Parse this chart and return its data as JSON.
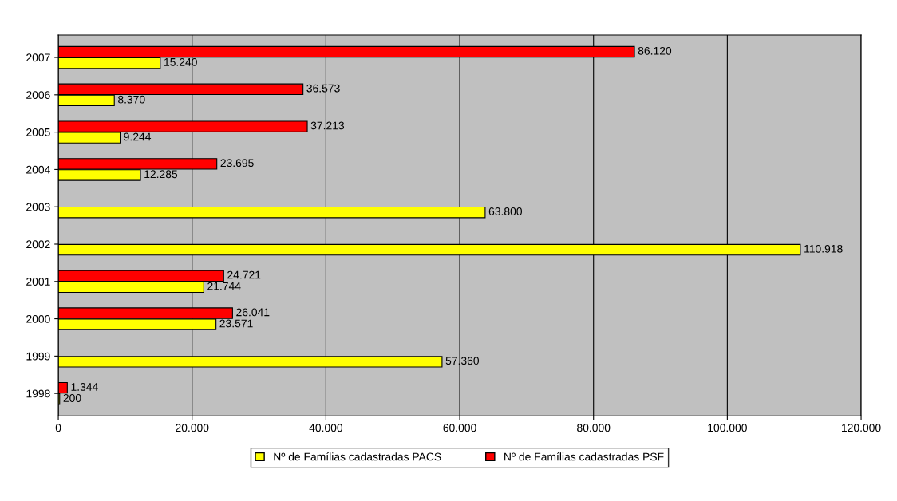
{
  "chart_data": {
    "type": "bar",
    "orientation": "horizontal",
    "categories": [
      "2007",
      "2006",
      "2005",
      "2004",
      "2003",
      "2002",
      "2001",
      "2000",
      "1999",
      "1998"
    ],
    "series": [
      {
        "name": "Nº de Famílias cadastradas PACS",
        "color": "#ffff00",
        "values": [
          15240,
          8370,
          9244,
          12285,
          63800,
          110918,
          21744,
          23571,
          57360,
          200
        ],
        "value_labels": [
          "15.240",
          "8.370",
          "9.244",
          "12.285",
          "63.800",
          "110.918",
          "21.744",
          "23.571",
          "57.360",
          "200"
        ]
      },
      {
        "name": "Nº de Famílias cadastradas PSF",
        "color": "#ff0000",
        "values": [
          86120,
          36573,
          37213,
          23695,
          null,
          null,
          24721,
          26041,
          null,
          1344
        ],
        "value_labels": [
          "86.120",
          "36.573",
          "37.213",
          "23.695",
          null,
          null,
          "24.721",
          "26.041",
          null,
          "1.344"
        ]
      }
    ],
    "xlim": [
      0,
      120000
    ],
    "xticks": [
      {
        "value": 0,
        "label": "0"
      },
      {
        "value": 20000,
        "label": "20.000"
      },
      {
        "value": 40000,
        "label": "40.000"
      },
      {
        "value": 60000,
        "label": "60.000"
      },
      {
        "value": 80000,
        "label": "80.000"
      },
      {
        "value": 100000,
        "label": "100.000"
      },
      {
        "value": 120000,
        "label": "120.000"
      }
    ],
    "grid": "x",
    "legend": "bottom"
  }
}
